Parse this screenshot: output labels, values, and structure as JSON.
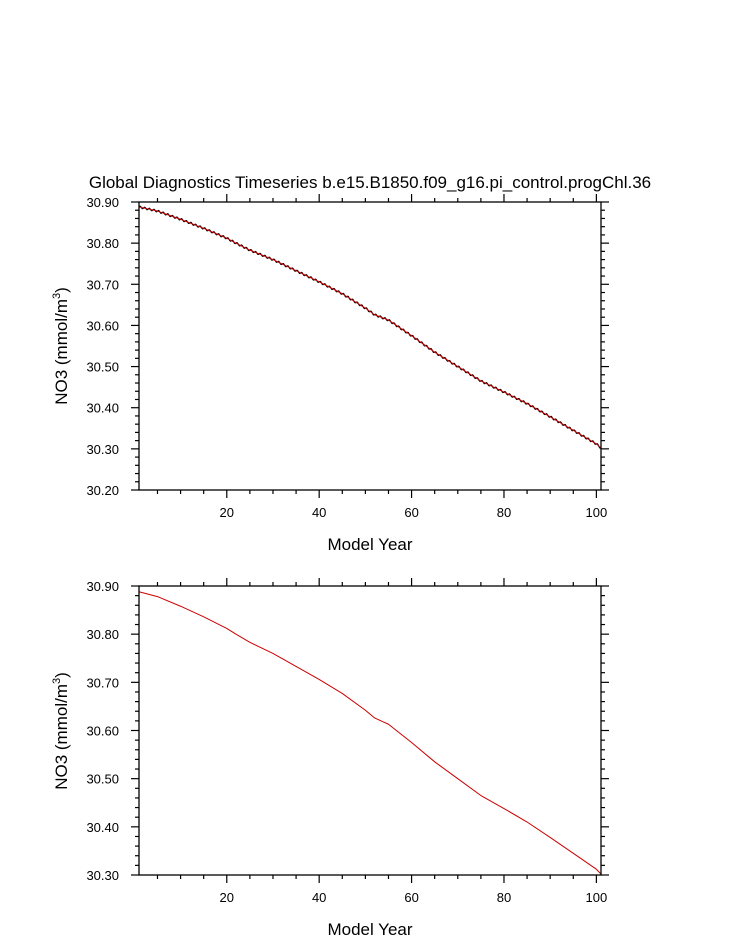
{
  "title": "Global Diagnostics Timeseries b.e15.B1850.f09_g16.pi_control.progChl.36",
  "chart_data": [
    {
      "type": "line",
      "xlabel": "Model Year",
      "ylabel_main": "NO3 (mmol/m",
      "ylabel_sup": "3",
      "ylabel_tail": ")",
      "xlim": [
        1,
        101
      ],
      "ylim": [
        30.2,
        30.9
      ],
      "x_major_ticks": [
        20,
        40,
        60,
        80,
        100
      ],
      "x_tick_labels": [
        "20",
        "40",
        "60",
        "80",
        "100"
      ],
      "y_major_ticks": [
        30.2,
        30.3,
        30.4,
        30.5,
        30.6,
        30.7,
        30.8,
        30.9
      ],
      "y_tick_labels": [
        "30.20",
        "30.30",
        "30.40",
        "30.50",
        "30.60",
        "30.70",
        "30.80",
        "30.90"
      ],
      "series": [
        {
          "color": "#000000",
          "seasonal_cycle": true,
          "x": [
            1,
            5,
            10,
            15,
            20,
            22,
            25,
            30,
            35,
            40,
            45,
            50,
            52,
            55,
            60,
            65,
            70,
            75,
            80,
            85,
            90,
            95,
            100,
            101
          ],
          "values": [
            30.888,
            30.878,
            30.858,
            30.836,
            30.812,
            30.8,
            30.783,
            30.76,
            30.733,
            30.706,
            30.677,
            30.642,
            30.626,
            30.613,
            30.575,
            30.535,
            30.5,
            30.465,
            30.438,
            30.41,
            30.378,
            30.345,
            30.312,
            30.302
          ]
        },
        {
          "color": "#cc0000",
          "seasonal_cycle": false,
          "x": [
            1,
            5,
            10,
            15,
            20,
            22,
            25,
            30,
            35,
            40,
            45,
            50,
            52,
            55,
            60,
            65,
            70,
            75,
            80,
            85,
            90,
            95,
            100,
            101
          ],
          "values": [
            30.888,
            30.878,
            30.858,
            30.836,
            30.812,
            30.8,
            30.783,
            30.76,
            30.733,
            30.706,
            30.677,
            30.642,
            30.626,
            30.613,
            30.575,
            30.535,
            30.5,
            30.465,
            30.438,
            30.41,
            30.378,
            30.345,
            30.312,
            30.302
          ]
        }
      ]
    },
    {
      "type": "line",
      "xlabel": "Model Year",
      "ylabel_main": "NO3 (mmol/m",
      "ylabel_sup": "3",
      "ylabel_tail": ")",
      "xlim": [
        1,
        101
      ],
      "ylim": [
        30.3,
        30.9
      ],
      "x_major_ticks": [
        20,
        40,
        60,
        80,
        100
      ],
      "x_tick_labels": [
        "20",
        "40",
        "60",
        "80",
        "100"
      ],
      "y_major_ticks": [
        30.3,
        30.4,
        30.5,
        30.6,
        30.7,
        30.8,
        30.9
      ],
      "y_tick_labels": [
        "30.30",
        "30.40",
        "30.50",
        "30.60",
        "30.70",
        "30.80",
        "30.90"
      ],
      "series": [
        {
          "color": "#cc0000",
          "seasonal_cycle": false,
          "x": [
            1,
            5,
            10,
            15,
            20,
            22,
            25,
            30,
            35,
            40,
            45,
            50,
            52,
            55,
            60,
            65,
            70,
            75,
            80,
            85,
            90,
            95,
            100,
            101
          ],
          "values": [
            30.888,
            30.878,
            30.858,
            30.836,
            30.812,
            30.8,
            30.783,
            30.76,
            30.733,
            30.706,
            30.677,
            30.642,
            30.626,
            30.613,
            30.575,
            30.535,
            30.5,
            30.465,
            30.438,
            30.41,
            30.378,
            30.345,
            30.312,
            30.302
          ]
        }
      ]
    }
  ]
}
